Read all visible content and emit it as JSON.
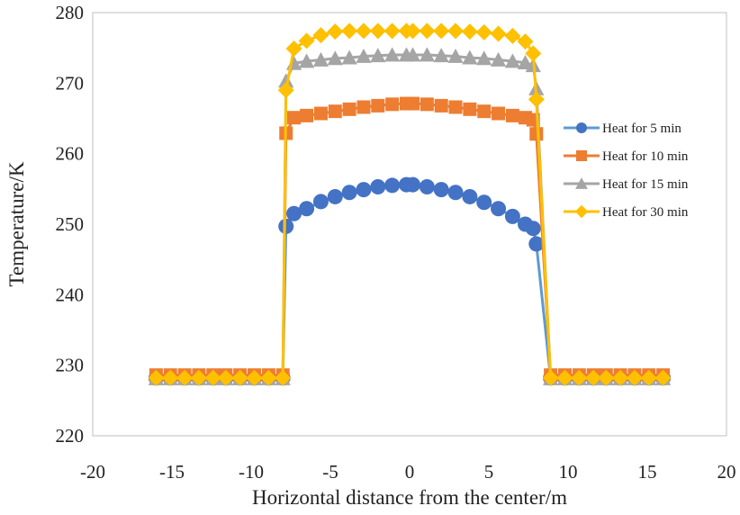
{
  "chart_data": {
    "type": "line",
    "title": "",
    "xlabel": "Horizontal distance from the center/m",
    "ylabel": "Temperature/K",
    "xlim": [
      -20,
      20
    ],
    "ylim": [
      220,
      280
    ],
    "xticks": [
      -20,
      -15,
      -10,
      -5,
      0,
      5,
      10,
      15,
      20
    ],
    "yticks": [
      220,
      230,
      240,
      250,
      260,
      270,
      280
    ],
    "grid": false,
    "legend_position": "right",
    "x": [
      -16,
      -15.1,
      -14.2,
      -13.3,
      -12.4,
      -11.6,
      -10.7,
      -9.8,
      -8.9,
      -8.0,
      -7.8,
      -7.3,
      -6.5,
      -5.6,
      -4.7,
      -3.8,
      -2.9,
      -2.0,
      -1.1,
      -0.2,
      0.2,
      1.1,
      2.0,
      2.9,
      3.8,
      4.7,
      5.6,
      6.5,
      7.3,
      7.8,
      8.0,
      8.9,
      9.8,
      10.7,
      11.6,
      12.4,
      13.3,
      14.2,
      15.1,
      16
    ],
    "series": [
      {
        "name": "Heat for 5 min",
        "color": "#4472C4",
        "line_color": "#5B9BD5",
        "marker": "circle",
        "values": [
          228.2,
          228.2,
          228.2,
          228.2,
          228.2,
          228.2,
          228.2,
          228.2,
          228.2,
          228.2,
          249.7,
          251.5,
          252.2,
          253.2,
          253.9,
          254.5,
          254.9,
          255.3,
          255.5,
          255.6,
          255.6,
          255.3,
          254.9,
          254.5,
          253.9,
          253.1,
          252.2,
          251.1,
          250.0,
          249.4,
          247.2,
          228.2,
          228.2,
          228.2,
          228.2,
          228.2,
          228.2,
          228.2,
          228.2,
          228.2
        ]
      },
      {
        "name": "Heat for 10 min",
        "color": "#ED7D31",
        "line_color": "#ED7D31",
        "marker": "square",
        "values": [
          228.6,
          228.6,
          228.6,
          228.6,
          228.6,
          228.6,
          228.6,
          228.6,
          228.6,
          228.6,
          262.9,
          265.1,
          265.4,
          265.7,
          266.0,
          266.3,
          266.6,
          266.8,
          267.0,
          267.1,
          267.1,
          267.0,
          266.8,
          266.6,
          266.3,
          266.0,
          265.7,
          265.4,
          265.1,
          264.8,
          262.8,
          228.6,
          228.6,
          228.6,
          228.6,
          228.6,
          228.6,
          228.6,
          228.6,
          228.6
        ]
      },
      {
        "name": "Heat for 15 min",
        "color": "#A5A5A5",
        "line_color": "#A5A5A5",
        "marker": "triangle",
        "values": [
          228.1,
          228.1,
          228.1,
          228.1,
          228.1,
          228.1,
          228.1,
          228.1,
          228.1,
          228.1,
          270.3,
          272.8,
          273.1,
          273.3,
          273.5,
          273.6,
          273.8,
          273.9,
          274.0,
          274.0,
          274.0,
          274.0,
          273.9,
          273.8,
          273.6,
          273.5,
          273.3,
          273.1,
          272.9,
          272.5,
          269.2,
          228.1,
          228.1,
          228.1,
          228.1,
          228.1,
          228.1,
          228.1,
          228.1,
          228.1
        ]
      },
      {
        "name": "Heat for 30 min",
        "color": "#FFC000",
        "line_color": "#FFC000",
        "marker": "diamond",
        "values": [
          228.2,
          228.2,
          228.2,
          228.2,
          228.2,
          228.2,
          228.2,
          228.2,
          228.2,
          228.2,
          269.0,
          274.9,
          276.0,
          276.8,
          277.3,
          277.4,
          277.4,
          277.4,
          277.4,
          277.4,
          277.4,
          277.4,
          277.4,
          277.4,
          277.3,
          277.2,
          277.0,
          276.7,
          275.9,
          274.2,
          267.7,
          228.2,
          228.2,
          228.2,
          228.2,
          228.2,
          228.2,
          228.2,
          228.2,
          228.2
        ]
      }
    ]
  }
}
